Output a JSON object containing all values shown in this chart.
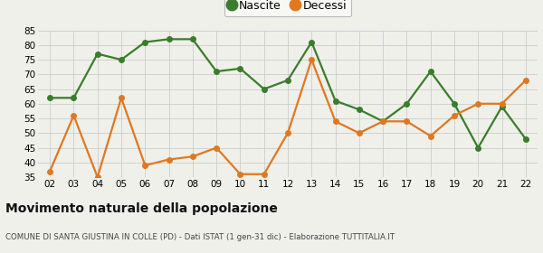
{
  "years": [
    "02",
    "03",
    "04",
    "05",
    "06",
    "07",
    "08",
    "09",
    "10",
    "11",
    "12",
    "13",
    "14",
    "15",
    "16",
    "17",
    "18",
    "19",
    "20",
    "21",
    "22"
  ],
  "nascite": [
    62,
    62,
    77,
    75,
    81,
    82,
    82,
    71,
    72,
    65,
    68,
    81,
    61,
    58,
    54,
    60,
    71,
    60,
    45,
    59,
    48
  ],
  "decessi": [
    37,
    56,
    35,
    62,
    39,
    41,
    42,
    45,
    36,
    36,
    50,
    75,
    54,
    50,
    54,
    54,
    49,
    56,
    60,
    60,
    68
  ],
  "nascite_color": "#3a7d2c",
  "decessi_color": "#e07820",
  "bg_color": "#f0f0eb",
  "grid_color": "#cccccc",
  "ylim_min": 35,
  "ylim_max": 85,
  "yticks": [
    35,
    40,
    45,
    50,
    55,
    60,
    65,
    70,
    75,
    80,
    85
  ],
  "title": "Movimento naturale della popolazione",
  "subtitle": "COMUNE DI SANTA GIUSTINA IN COLLE (PD) - Dati ISTAT (1 gen-31 dic) - Elaborazione TUTTITALIA.IT",
  "legend_nascite": "Nascite",
  "legend_decessi": "Decessi",
  "linewidth": 1.6,
  "markersize": 4
}
